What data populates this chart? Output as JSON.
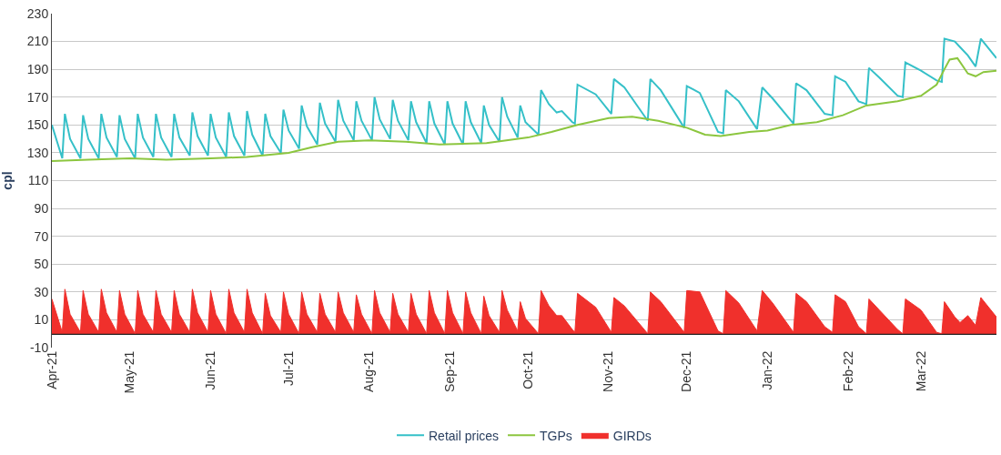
{
  "chart_data": {
    "type": "line",
    "ylabel": "cpl",
    "xlim": [
      "2021-04-01",
      "2022-03-30"
    ],
    "ylim": [
      -10,
      230
    ],
    "yticks": [
      -10,
      10,
      30,
      50,
      70,
      90,
      110,
      130,
      150,
      170,
      190,
      210,
      230
    ],
    "xticks": [
      {
        "value": "2021-04-01",
        "label": "Apr-21"
      },
      {
        "value": "2021-05-01",
        "label": "May-21"
      },
      {
        "value": "2021-06-01",
        "label": "Jun-21"
      },
      {
        "value": "2021-07-01",
        "label": "Jul-21"
      },
      {
        "value": "2021-08-01",
        "label": "Aug-21"
      },
      {
        "value": "2021-09-01",
        "label": "Sep-21"
      },
      {
        "value": "2021-10-01",
        "label": "Oct-21"
      },
      {
        "value": "2021-11-01",
        "label": "Nov-21"
      },
      {
        "value": "2021-12-01",
        "label": "Dec-21"
      },
      {
        "value": "2022-01-01",
        "label": "Jan-22"
      },
      {
        "value": "2022-02-01",
        "label": "Feb-22"
      },
      {
        "value": "2022-03-01",
        "label": "Mar-22"
      }
    ],
    "grid": "y",
    "legend": "bottom",
    "marker": "none",
    "line_style": "solid",
    "series": [
      {
        "name": "Retail prices",
        "color": "#35c0c8",
        "x": [
          "2021-04-01",
          "2021-04-05",
          "2021-04-06",
          "2021-04-08",
          "2021-04-12",
          "2021-04-13",
          "2021-04-15",
          "2021-04-19",
          "2021-04-20",
          "2021-04-22",
          "2021-04-26",
          "2021-04-27",
          "2021-04-29",
          "2021-05-03",
          "2021-05-04",
          "2021-05-06",
          "2021-05-10",
          "2021-05-11",
          "2021-05-13",
          "2021-05-17",
          "2021-05-18",
          "2021-05-20",
          "2021-05-24",
          "2021-05-25",
          "2021-05-27",
          "2021-05-31",
          "2021-06-01",
          "2021-06-03",
          "2021-06-07",
          "2021-06-08",
          "2021-06-10",
          "2021-06-14",
          "2021-06-15",
          "2021-06-17",
          "2021-06-21",
          "2021-06-22",
          "2021-06-24",
          "2021-06-28",
          "2021-06-29",
          "2021-07-01",
          "2021-07-05",
          "2021-07-06",
          "2021-07-08",
          "2021-07-12",
          "2021-07-13",
          "2021-07-15",
          "2021-07-19",
          "2021-07-20",
          "2021-07-22",
          "2021-07-26",
          "2021-07-27",
          "2021-07-29",
          "2021-08-02",
          "2021-08-03",
          "2021-08-05",
          "2021-08-09",
          "2021-08-10",
          "2021-08-12",
          "2021-08-16",
          "2021-08-17",
          "2021-08-19",
          "2021-08-23",
          "2021-08-24",
          "2021-08-26",
          "2021-08-30",
          "2021-08-31",
          "2021-09-02",
          "2021-09-06",
          "2021-09-07",
          "2021-09-09",
          "2021-09-13",
          "2021-09-14",
          "2021-09-16",
          "2021-09-20",
          "2021-09-21",
          "2021-09-23",
          "2021-09-27",
          "2021-09-28",
          "2021-09-30",
          "2021-10-05",
          "2021-10-06",
          "2021-10-09",
          "2021-10-12",
          "2021-10-14",
          "2021-10-18",
          "2021-10-19",
          "2021-10-20",
          "2021-10-27",
          "2021-11-02",
          "2021-11-03",
          "2021-11-07",
          "2021-11-16",
          "2021-11-17",
          "2021-11-21",
          "2021-11-30",
          "2021-12-01",
          "2021-12-06",
          "2021-12-13",
          "2021-12-15",
          "2021-12-16",
          "2021-12-21",
          "2021-12-28",
          "2021-12-30",
          "2022-01-03",
          "2022-01-11",
          "2022-01-12",
          "2022-01-16",
          "2022-01-23",
          "2022-01-26",
          "2022-01-27",
          "2022-01-31",
          "2022-02-05",
          "2022-02-08",
          "2022-02-09",
          "2022-02-13",
          "2022-02-20",
          "2022-02-22",
          "2022-02-23",
          "2022-03-01",
          "2022-03-07",
          "2022-03-09",
          "2022-03-10",
          "2022-03-14",
          "2022-03-16",
          "2022-03-19",
          "2022-03-22",
          "2022-03-24",
          "2022-03-30"
        ],
        "values": [
          150,
          126,
          158,
          140,
          126,
          157,
          140,
          126,
          158,
          141,
          127,
          157,
          140,
          126,
          158,
          141,
          127,
          158,
          141,
          127,
          158,
          141,
          128,
          159,
          142,
          128,
          158,
          141,
          127,
          159,
          142,
          128,
          160,
          143,
          128,
          158,
          142,
          130,
          161,
          146,
          133,
          164,
          149,
          136,
          166,
          151,
          138,
          168,
          153,
          139,
          167,
          153,
          139,
          170,
          154,
          140,
          168,
          153,
          139,
          167,
          152,
          137,
          167,
          151,
          136,
          167,
          151,
          136,
          167,
          152,
          137,
          164,
          150,
          138,
          170,
          156,
          141,
          164,
          152,
          143,
          175,
          165,
          159,
          160,
          152,
          151,
          179,
          172,
          158,
          183,
          177,
          153,
          183,
          175,
          148,
          178,
          173,
          145,
          144,
          175,
          167,
          147,
          177,
          169,
          151,
          180,
          175,
          158,
          157,
          185,
          181,
          167,
          165,
          191,
          184,
          171,
          170,
          195,
          189,
          182,
          181,
          212,
          210,
          206,
          200,
          192,
          212,
          198
        ]
      },
      {
        "name": "TGPs",
        "color": "#8cc63f",
        "x": [
          "2021-04-01",
          "2021-04-15",
          "2021-05-01",
          "2021-05-15",
          "2021-06-01",
          "2021-06-15",
          "2021-07-01",
          "2021-07-10",
          "2021-07-20",
          "2021-08-01",
          "2021-08-15",
          "2021-08-28",
          "2021-09-15",
          "2021-10-01",
          "2021-10-10",
          "2021-10-20",
          "2021-11-01",
          "2021-11-10",
          "2021-11-20",
          "2021-12-01",
          "2021-12-08",
          "2021-12-14",
          "2021-12-25",
          "2022-01-01",
          "2022-01-10",
          "2022-01-20",
          "2022-01-30",
          "2022-02-08",
          "2022-02-20",
          "2022-03-01",
          "2022-03-07",
          "2022-03-10",
          "2022-03-12",
          "2022-03-15",
          "2022-03-19",
          "2022-03-22",
          "2022-03-25",
          "2022-03-30"
        ],
        "values": [
          124,
          125,
          126,
          125,
          126,
          127,
          130,
          134,
          138,
          139,
          138,
          136,
          137,
          141,
          145,
          150,
          155,
          156,
          153,
          148,
          143,
          142,
          145,
          146,
          150,
          152,
          157,
          164,
          167,
          171,
          179,
          190,
          197,
          198,
          187,
          185,
          188,
          189
        ]
      },
      {
        "name": "GIRDs",
        "type": "area",
        "color": "#f0302c",
        "x": [
          "2021-04-01",
          "2021-04-05",
          "2021-04-06",
          "2021-04-08",
          "2021-04-12",
          "2021-04-13",
          "2021-04-15",
          "2021-04-19",
          "2021-04-20",
          "2021-04-22",
          "2021-04-26",
          "2021-04-27",
          "2021-04-29",
          "2021-05-03",
          "2021-05-04",
          "2021-05-06",
          "2021-05-10",
          "2021-05-11",
          "2021-05-13",
          "2021-05-17",
          "2021-05-18",
          "2021-05-20",
          "2021-05-24",
          "2021-05-25",
          "2021-05-27",
          "2021-05-31",
          "2021-06-01",
          "2021-06-03",
          "2021-06-07",
          "2021-06-08",
          "2021-06-10",
          "2021-06-14",
          "2021-06-15",
          "2021-06-17",
          "2021-06-21",
          "2021-06-22",
          "2021-06-24",
          "2021-06-28",
          "2021-06-29",
          "2021-07-01",
          "2021-07-05",
          "2021-07-06",
          "2021-07-08",
          "2021-07-12",
          "2021-07-13",
          "2021-07-15",
          "2021-07-19",
          "2021-07-20",
          "2021-07-22",
          "2021-07-26",
          "2021-07-27",
          "2021-07-29",
          "2021-08-02",
          "2021-08-03",
          "2021-08-05",
          "2021-08-09",
          "2021-08-10",
          "2021-08-12",
          "2021-08-16",
          "2021-08-17",
          "2021-08-19",
          "2021-08-23",
          "2021-08-24",
          "2021-08-26",
          "2021-08-30",
          "2021-08-31",
          "2021-09-02",
          "2021-09-06",
          "2021-09-07",
          "2021-09-09",
          "2021-09-13",
          "2021-09-14",
          "2021-09-16",
          "2021-09-20",
          "2021-09-21",
          "2021-09-23",
          "2021-09-27",
          "2021-09-28",
          "2021-09-30",
          "2021-10-05",
          "2021-10-06",
          "2021-10-09",
          "2021-10-12",
          "2021-10-14",
          "2021-10-18",
          "2021-10-19",
          "2021-10-20",
          "2021-10-27",
          "2021-11-02",
          "2021-11-03",
          "2021-11-07",
          "2021-11-16",
          "2021-11-17",
          "2021-11-21",
          "2021-11-30",
          "2021-12-01",
          "2021-12-06",
          "2021-12-13",
          "2021-12-15",
          "2021-12-16",
          "2021-12-21",
          "2021-12-28",
          "2021-12-30",
          "2022-01-03",
          "2022-01-11",
          "2022-01-12",
          "2022-01-16",
          "2022-01-23",
          "2022-01-26",
          "2022-01-27",
          "2022-01-31",
          "2022-02-05",
          "2022-02-08",
          "2022-02-09",
          "2022-02-13",
          "2022-02-20",
          "2022-02-22",
          "2022-02-23",
          "2022-03-01",
          "2022-03-07",
          "2022-03-09",
          "2022-03-10",
          "2022-03-14",
          "2022-03-16",
          "2022-03-19",
          "2022-03-22",
          "2022-03-24",
          "2022-03-30"
        ],
        "values": [
          25,
          1,
          32,
          14,
          1,
          31,
          14,
          1,
          32,
          15,
          1,
          31,
          14,
          0,
          31,
          14,
          1,
          31,
          14,
          1,
          31,
          14,
          1,
          32,
          15,
          1,
          31,
          14,
          0,
          32,
          15,
          1,
          32,
          15,
          0,
          29,
          13,
          1,
          30,
          14,
          0,
          30,
          14,
          1,
          29,
          14,
          1,
          30,
          15,
          1,
          28,
          14,
          0,
          31,
          15,
          1,
          29,
          14,
          1,
          29,
          14,
          0,
          31,
          15,
          0,
          31,
          15,
          0,
          30,
          15,
          0,
          27,
          13,
          1,
          31,
          17,
          2,
          23,
          11,
          0,
          31,
          20,
          13,
          13,
          3,
          1,
          29,
          19,
          1,
          26,
          20,
          0,
          30,
          23,
          1,
          31,
          30,
          2,
          0,
          31,
          22,
          2,
          31,
          22,
          1,
          29,
          23,
          5,
          1,
          28,
          23,
          5,
          0,
          25,
          17,
          3,
          0,
          25,
          17,
          1,
          0,
          23,
          12,
          8,
          13,
          6,
          26,
          12
        ]
      }
    ]
  }
}
